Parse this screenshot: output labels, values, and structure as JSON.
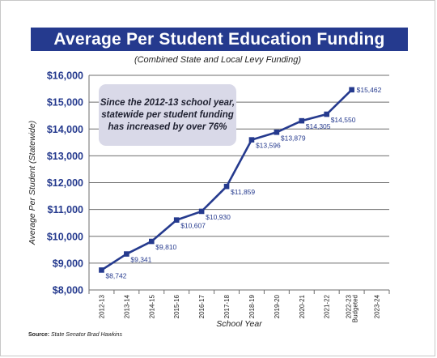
{
  "chart_data": {
    "type": "line",
    "title": "Average Per Student Education Funding",
    "subtitle": "(Combined State and Local Levy Funding)",
    "xlabel": "School Year",
    "ylabel": "Average Per Student (Statewide)",
    "categories": [
      "2012-13",
      "2013-14",
      "2014-15",
      "2015-16",
      "2016-17",
      "2017-18",
      "2018-19",
      "2019-20",
      "2020-21",
      "2021-22",
      "2022-23 Budgeted",
      "2023-24"
    ],
    "category_lines": [
      [
        "2012-13"
      ],
      [
        "2013-14"
      ],
      [
        "2014-15"
      ],
      [
        "2015-16"
      ],
      [
        "2016-17"
      ],
      [
        "2017-18"
      ],
      [
        "2018-19"
      ],
      [
        "2019-20"
      ],
      [
        "2020-21"
      ],
      [
        "2021-22"
      ],
      [
        "2022-23",
        "Budgeted"
      ],
      [
        "2023-24"
      ]
    ],
    "values": [
      8742,
      9341,
      9810,
      10607,
      10930,
      11859,
      13596,
      13879,
      14305,
      14550,
      15462,
      null
    ],
    "data_labels": [
      "$8,742",
      "$9,341",
      "$9,810",
      "$10,607",
      "$10,930",
      "$11,859",
      "$13,596",
      "$13,879",
      "$14,305",
      "$14,550",
      "$15,462",
      ""
    ],
    "ylim": [
      8000,
      16000
    ],
    "y_ticks": [
      8000,
      9000,
      10000,
      11000,
      12000,
      13000,
      14000,
      15000,
      16000
    ],
    "y_tick_labels": [
      "$8,000",
      "$9,000",
      "$10,000",
      "$11,000",
      "$12,000",
      "$13,000",
      "$14,000",
      "$15,000",
      "$16,000"
    ],
    "grid": true,
    "line_color": "#253a8e",
    "grid_color": "#6e6e6e"
  },
  "annotation": {
    "text": "Since the 2012-13 school year, statewide per student funding has increased by over 76%"
  },
  "source": {
    "label": "Source:",
    "text": "State Senator Brad Hawkins"
  }
}
